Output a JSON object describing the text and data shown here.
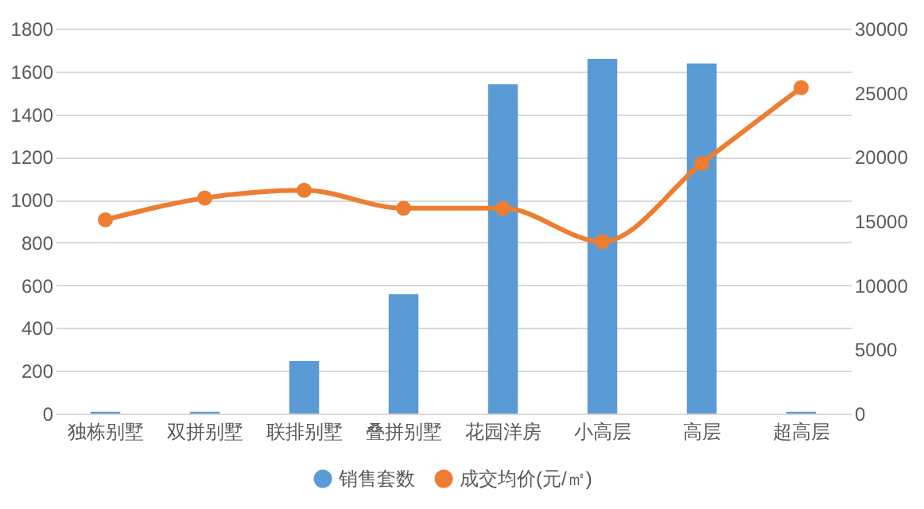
{
  "chart_data": {
    "type": "bar",
    "categories": [
      "独栋别墅",
      "双拼别墅",
      "联排别墅",
      "叠拼别墅",
      "花园洋房",
      "小高层",
      "高层",
      "超高层"
    ],
    "series": [
      {
        "name": "销售套数",
        "color": "#5b9bd5",
        "values": [
          8,
          8,
          245,
          558,
          1540,
          1659,
          1637,
          8
        ]
      },
      {
        "name": "成交均价(元/㎡)",
        "type": "line",
        "axis": "y2",
        "color": "#ed7d31",
        "values": [
          15100,
          16800,
          17400,
          16000,
          16000,
          13400,
          19500,
          25400
        ]
      }
    ],
    "ylim": [
      0,
      1800
    ],
    "yticks": [
      0,
      200,
      400,
      600,
      800,
      1000,
      1200,
      1400,
      1600,
      1800
    ],
    "y2lim": [
      0,
      30000
    ],
    "y2ticks": [
      0,
      5000,
      10000,
      15000,
      20000,
      25000,
      30000
    ],
    "grid": "y",
    "legend": "bottom",
    "marker": "circle"
  }
}
